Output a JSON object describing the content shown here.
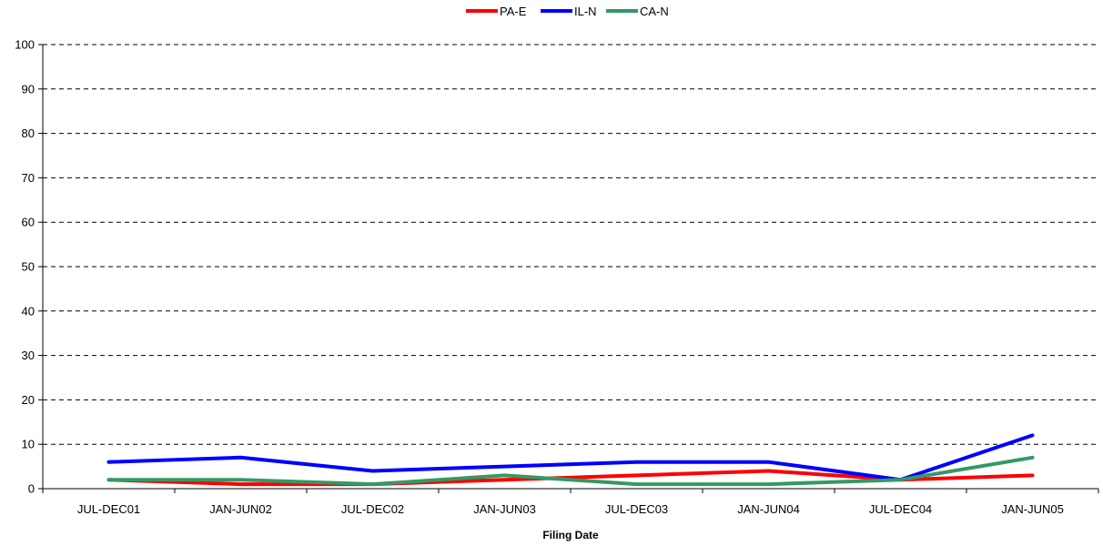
{
  "chart_data": {
    "type": "line",
    "title": "",
    "xlabel": "Filing Date",
    "ylabel": "",
    "categories": [
      "JUL-DEC01",
      "JAN-JUN02",
      "JUL-DEC02",
      "JAN-JUN03",
      "JUL-DEC03",
      "JAN-JUN04",
      "JUL-DEC04",
      "JAN-JUN05"
    ],
    "ylim": [
      0,
      100
    ],
    "yticks": [
      0,
      10,
      20,
      30,
      40,
      50,
      60,
      70,
      80,
      90,
      100
    ],
    "grid": true,
    "grid_style": "dashed",
    "legend_position": "top-center",
    "series": [
      {
        "name": "PA-E",
        "color": "#ff0000",
        "values": [
          2,
          1,
          1,
          2,
          3,
          4,
          2,
          3
        ]
      },
      {
        "name": "IL-N",
        "color": "#0000ff",
        "values": [
          6,
          7,
          4,
          5,
          6,
          6,
          2,
          12
        ]
      },
      {
        "name": "CA-N",
        "color": "#339966",
        "values": [
          2,
          2,
          1,
          3,
          1,
          1,
          2,
          7
        ]
      }
    ]
  }
}
